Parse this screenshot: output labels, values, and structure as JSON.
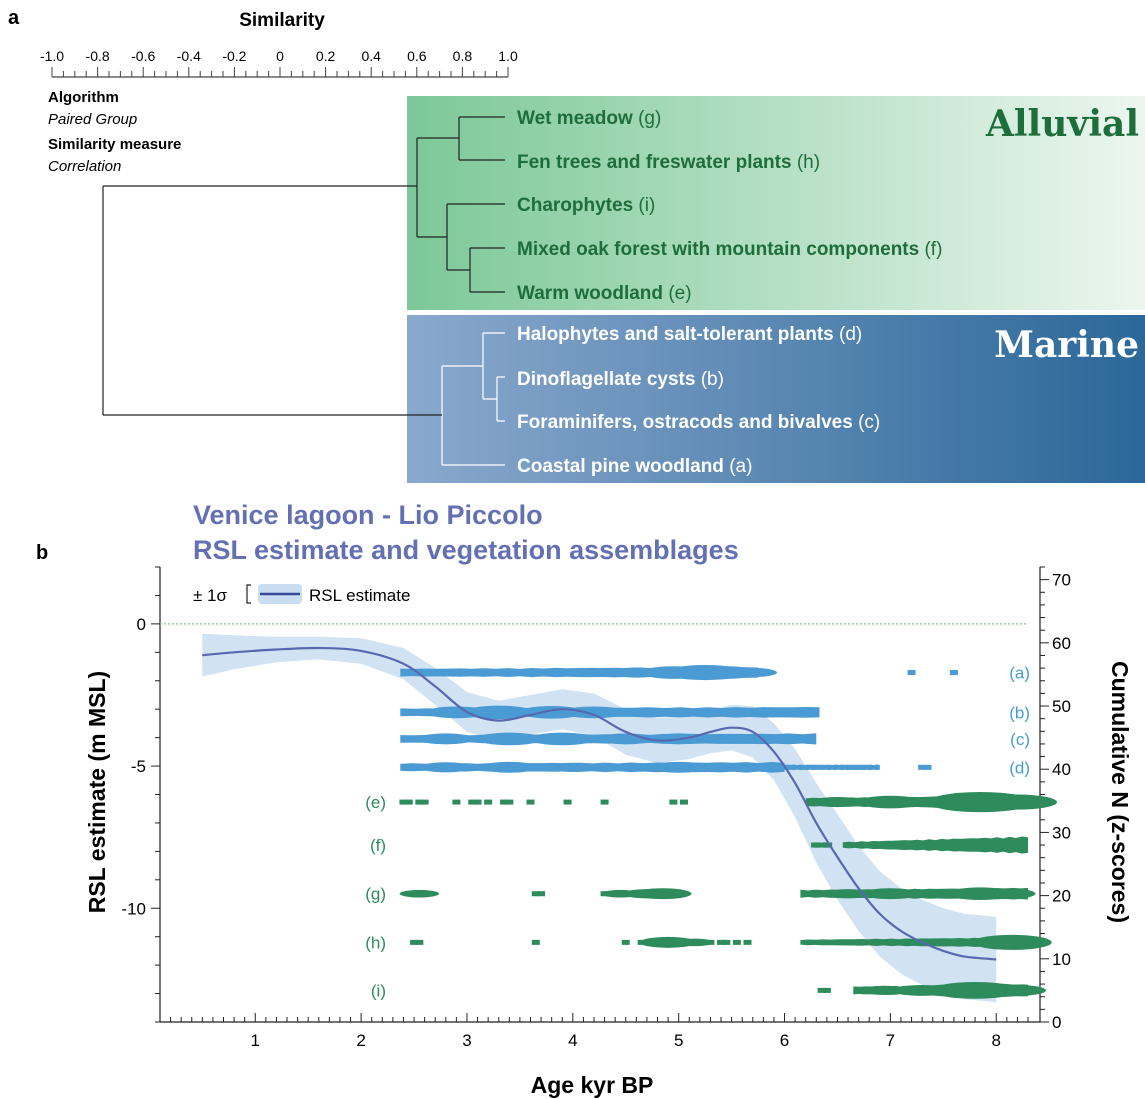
{
  "panel_a": {
    "label": "a",
    "scale_title": "Similarity",
    "scale_ticks": [
      "-1.0",
      "-0.8",
      "-0.6",
      "-0.4",
      "-0.2",
      "0",
      "0.2",
      "0.4",
      "0.6",
      "0.8",
      "1.0"
    ],
    "algorithm_label": "Algorithm",
    "algorithm_value": "Paired Group",
    "measure_label": "Similarity measure",
    "measure_value": "Correlation",
    "group_alluvial": "Alluvial",
    "group_marine": "Marine",
    "leaves": [
      {
        "name": "Wet meadow",
        "code": "(g)"
      },
      {
        "name": "Fen trees and freswater plants",
        "code": "(h)"
      },
      {
        "name": "Charophytes",
        "code": "(i)"
      },
      {
        "name": "Mixed oak forest with mountain components",
        "code": "(f)"
      },
      {
        "name": "Warm woodland",
        "code": "(e)"
      },
      {
        "name": "Halophytes and salt-tolerant plants",
        "code": "(d)"
      },
      {
        "name": "Dinoflagellate cysts",
        "code": "(b)"
      },
      {
        "name": "Foraminifers, ostracods and bivalves",
        "code": "(c)"
      },
      {
        "name": "Coastal pine woodland",
        "code": "(a)"
      }
    ],
    "colors": {
      "alluvial_text": "#1e6e3c",
      "alluvial_bg": "#74c290",
      "marine_bg": "#2f6d9d",
      "marine_text": "#ffffff"
    }
  },
  "panel_b": {
    "label": "b",
    "title_line1": "Venice lagoon - Lio Piccolo",
    "title_line2": "RSL estimate and vegetation assemblages",
    "legend_sigma": "± 1σ",
    "legend_line": "RSL estimate",
    "colors": {
      "title": "#6470b4",
      "line": "#5868b0",
      "band": "#c9ddf0",
      "marine": "#4a9bd4",
      "alluvial": "#2e8c5c",
      "zero_line": "#80cc80"
    }
  },
  "chart_data": {
    "type": "line",
    "xlabel": "Age kyr BP",
    "ylabel": "RSL estimate (m MSL)",
    "ylabel_right": "Cumulative N (z-scores)",
    "xlim": [
      0.1,
      8.3
    ],
    "ylim": [
      -14,
      2
    ],
    "ylim_right": [
      0,
      72
    ],
    "x_ticks": [
      "1",
      "2",
      "3",
      "4",
      "5",
      "6",
      "7",
      "8"
    ],
    "y_ticks": [
      "0",
      "-5",
      "-10"
    ],
    "y_ticks_right": [
      "0",
      "10",
      "20",
      "30",
      "40",
      "50",
      "60",
      "70"
    ],
    "rsl_series": {
      "name": "RSL estimate",
      "x": [
        0.5,
        0.8,
        1.2,
        1.6,
        2.0,
        2.4,
        2.7,
        3.0,
        3.3,
        3.6,
        3.9,
        4.2,
        4.5,
        4.8,
        5.1,
        5.3,
        5.5,
        5.7,
        5.9,
        6.1,
        6.3,
        6.5,
        6.7,
        6.9,
        7.1,
        7.3,
        7.5,
        7.7,
        8.0
      ],
      "y": [
        -1.1,
        -1.0,
        -0.9,
        -0.85,
        -0.95,
        -1.4,
        -2.2,
        -3.1,
        -3.4,
        -3.2,
        -3.0,
        -3.2,
        -3.8,
        -4.1,
        -4.0,
        -3.8,
        -3.65,
        -3.8,
        -4.5,
        -5.6,
        -7.0,
        -8.2,
        -9.3,
        -10.2,
        -10.8,
        -11.2,
        -11.5,
        -11.7,
        -11.8
      ],
      "sigma": [
        0.75,
        0.6,
        0.45,
        0.4,
        0.45,
        0.55,
        0.65,
        0.7,
        0.7,
        0.7,
        0.7,
        0.75,
        0.8,
        0.8,
        0.75,
        0.75,
        0.8,
        0.9,
        1.0,
        1.2,
        1.4,
        1.5,
        1.5,
        1.5,
        1.5,
        1.5,
        1.5,
        1.5,
        1.5
      ]
    },
    "assemblages": [
      {
        "code": "(a)",
        "group": "marine",
        "z": 55.3,
        "segments": [
          [
            2.37,
            5.75,
            1,
            0.4
          ]
        ],
        "blobs": [
          [
            4.3,
            1
          ],
          [
            4.6,
            1.2
          ],
          [
            4.95,
            1.5
          ],
          [
            5.25,
            1.8
          ],
          [
            5.45,
            1.5
          ],
          [
            5.7,
            1.1
          ]
        ],
        "dots": [
          7.2,
          7.6
        ]
      },
      {
        "code": "(b)",
        "group": "marine",
        "z": 49.0,
        "segments": [
          [
            2.37,
            6.33,
            1,
            0.4
          ]
        ],
        "blobs": [
          [
            2.9,
            1.4
          ],
          [
            3.3,
            1.6
          ],
          [
            3.8,
            1.5
          ],
          [
            4.2,
            1.4
          ],
          [
            4.7,
            1.2
          ],
          [
            5.3,
            1.1
          ],
          [
            5.8,
            0.9
          ]
        ],
        "dots": []
      },
      {
        "code": "(c)",
        "group": "marine",
        "z": 44.8,
        "segments": [
          [
            2.37,
            6.3,
            1,
            0.4
          ]
        ],
        "blobs": [
          [
            2.8,
            1.3
          ],
          [
            3.4,
            1.5
          ],
          [
            3.9,
            1.5
          ],
          [
            4.5,
            1.3
          ],
          [
            5.0,
            1.3
          ],
          [
            5.6,
            1.2
          ]
        ],
        "dots": []
      },
      {
        "code": "(d)",
        "group": "marine",
        "z": 40.3,
        "segments": [
          [
            2.37,
            6.0,
            1,
            0.35
          ],
          [
            6.0,
            6.9,
            0.7,
            0
          ]
        ],
        "blobs": [
          [
            2.8,
            1.2
          ],
          [
            3.4,
            1.3
          ],
          [
            4.0,
            1.1
          ],
          [
            5.0,
            1.3
          ],
          [
            5.4,
            1.1
          ]
        ],
        "dots": [
          7.3,
          7.35
        ]
      },
      {
        "code": "(e)",
        "group": "alluvial",
        "z": 34.8,
        "segments": [
          [
            6.2,
            8.3,
            1.1,
            0.5
          ]
        ],
        "blobs": [
          [
            6.5,
            1.2
          ],
          [
            7.0,
            1.5
          ],
          [
            7.5,
            1.4
          ],
          [
            7.85,
            2.4
          ],
          [
            8.2,
            1.8
          ]
        ],
        "dots": [
          2.4,
          2.45,
          2.55,
          2.6,
          2.9,
          3.05,
          3.1,
          3.2,
          3.35,
          3.4,
          3.6,
          3.95,
          4.3,
          4.95,
          5.05
        ]
      },
      {
        "code": "(f)",
        "group": "alluvial",
        "z": 28.0,
        "segments": [
          [
            6.25,
            6.45,
            0.7,
            0
          ],
          [
            6.55,
            8.3,
            0.8,
            1.4
          ]
        ],
        "blobs": [],
        "dots": []
      },
      {
        "code": "(g)",
        "group": "alluvial",
        "z": 20.3,
        "segments": [
          [
            6.15,
            8.3,
            1,
            0.5
          ]
        ],
        "blobs": [
          [
            2.55,
            0.9
          ],
          [
            4.45,
            0.9
          ],
          [
            4.7,
            1.1
          ],
          [
            4.85,
            1.3
          ],
          [
            6.6,
            1.1
          ],
          [
            7.0,
            1.3
          ],
          [
            7.5,
            1.0
          ],
          [
            7.85,
            1.5
          ],
          [
            8.1,
            1.3
          ]
        ],
        "dots": [
          2.5,
          2.6,
          3.65,
          3.7,
          4.3,
          4.4,
          4.55,
          4.65,
          4.9,
          5.0
        ]
      },
      {
        "code": "(h)",
        "group": "alluvial",
        "z": 12.6,
        "segments": [
          [
            6.15,
            8.3,
            0.7,
            0.6
          ]
        ],
        "blobs": [
          [
            4.9,
            1.3
          ],
          [
            5.15,
            0.9
          ],
          [
            8.15,
            1.8
          ],
          [
            7.9,
            1.1
          ]
        ],
        "dots": [
          2.5,
          2.55,
          3.65,
          4.5,
          4.65,
          4.75,
          5.05,
          5.3,
          5.4,
          5.45,
          5.55,
          5.65
        ]
      },
      {
        "code": "(i)",
        "group": "alluvial",
        "z": 5.0,
        "segments": [
          [
            6.65,
            8.3,
            1,
            0.6
          ]
        ],
        "blobs": [
          [
            6.95,
            1.1
          ],
          [
            7.3,
            1.3
          ],
          [
            7.55,
            1.4
          ],
          [
            7.8,
            2.0
          ],
          [
            8.0,
            1.6
          ],
          [
            8.2,
            1.3
          ]
        ],
        "dots": [
          6.35,
          6.4,
          6.7,
          6.75
        ]
      }
    ]
  }
}
